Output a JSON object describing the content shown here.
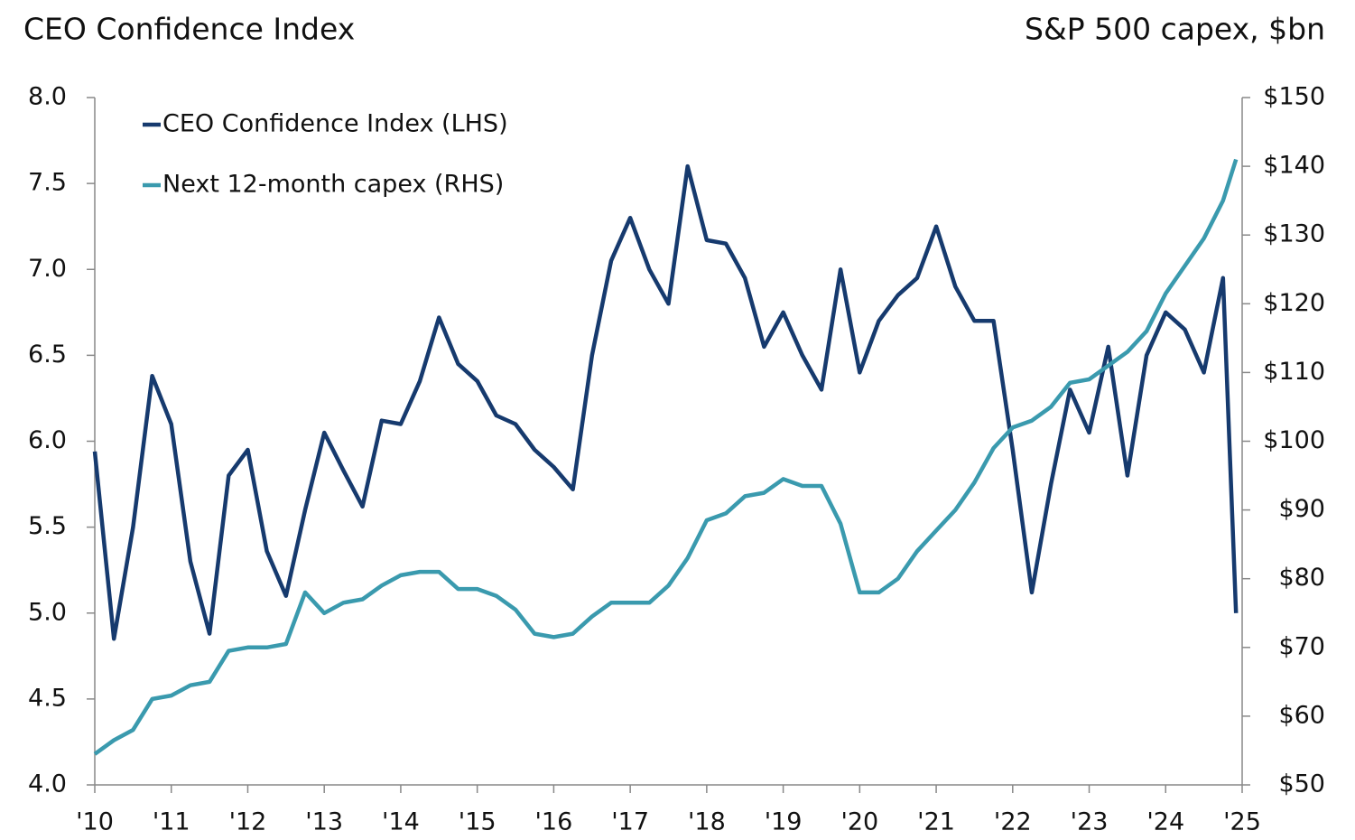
{
  "chart_data": {
    "type": "line",
    "title": "CEO Confidence Index",
    "y2_title": "S&P 500 capex, $bn",
    "legend": "top-left",
    "x": [
      2010,
      2010.25,
      2010.5,
      2010.75,
      2011,
      2011.25,
      2011.5,
      2011.75,
      2012,
      2012.25,
      2012.5,
      2012.75,
      2013,
      2013.25,
      2013.5,
      2013.75,
      2014,
      2014.25,
      2014.5,
      2014.75,
      2015,
      2015.25,
      2015.5,
      2015.75,
      2016,
      2016.25,
      2016.5,
      2016.75,
      2017,
      2017.25,
      2017.5,
      2017.75,
      2018,
      2018.25,
      2018.5,
      2018.75,
      2019,
      2019.25,
      2019.5,
      2019.75,
      2020,
      2020.25,
      2020.5,
      2020.75,
      2021,
      2021.25,
      2021.5,
      2021.75,
      2022,
      2022.25,
      2022.5,
      2022.75,
      2023,
      2023.25,
      2023.5,
      2023.75,
      2024,
      2024.25,
      2024.5,
      2024.75,
      2024.92
    ],
    "series": [
      {
        "name": "CEO Confidence Index (LHS)",
        "color": "#163a6e",
        "axis": "y",
        "values": [
          5.94,
          4.85,
          5.5,
          6.38,
          6.1,
          5.3,
          4.88,
          5.8,
          5.95,
          5.36,
          5.1,
          5.6,
          6.05,
          5.83,
          5.62,
          6.12,
          6.1,
          6.35,
          6.72,
          6.45,
          6.35,
          6.15,
          6.1,
          5.95,
          5.85,
          5.72,
          6.5,
          7.05,
          7.3,
          7.0,
          6.8,
          7.6,
          7.17,
          7.15,
          6.95,
          6.55,
          6.75,
          6.5,
          6.3,
          7.0,
          6.4,
          6.7,
          6.85,
          6.95,
          7.25,
          6.9,
          6.7,
          6.7,
          5.95,
          5.12,
          5.75,
          6.3,
          6.05,
          6.55,
          5.8,
          6.5,
          6.75,
          6.65,
          6.4,
          6.95,
          5.0
        ]
      },
      {
        "name": "Next 12-month capex (RHS)",
        "color": "#3a9aae",
        "axis": "y2",
        "values": [
          54.5,
          56.5,
          58,
          62.5,
          63,
          64.5,
          65,
          69.5,
          70,
          70,
          70.5,
          78,
          75,
          76.5,
          77,
          79,
          80.5,
          81,
          81,
          78.5,
          78.5,
          77.5,
          75.5,
          72,
          71.5,
          72,
          74.5,
          76.5,
          76.5,
          76.5,
          79,
          83,
          88.5,
          89.5,
          92,
          92.5,
          94.5,
          93.5,
          93.5,
          88,
          78,
          78,
          80,
          84,
          87,
          90,
          94,
          99,
          102,
          103,
          105,
          108.5,
          109,
          111,
          113,
          116,
          121.5,
          125.5,
          129.5,
          135,
          141
        ]
      }
    ],
    "xlim": [
      2010,
      2025
    ],
    "xticks": [
      {
        "value": 2010,
        "label": "'10"
      },
      {
        "value": 2011,
        "label": "'11"
      },
      {
        "value": 2012,
        "label": "'12"
      },
      {
        "value": 2013,
        "label": "'13"
      },
      {
        "value": 2014,
        "label": "'14"
      },
      {
        "value": 2015,
        "label": "'15"
      },
      {
        "value": 2016,
        "label": "'16"
      },
      {
        "value": 2017,
        "label": "'17"
      },
      {
        "value": 2018,
        "label": "'18"
      },
      {
        "value": 2019,
        "label": "'19"
      },
      {
        "value": 2020,
        "label": "'20"
      },
      {
        "value": 2021,
        "label": "'21"
      },
      {
        "value": 2022,
        "label": "'22"
      },
      {
        "value": 2023,
        "label": "'23"
      },
      {
        "value": 2024,
        "label": "'24"
      },
      {
        "value": 2025,
        "label": "'25"
      }
    ],
    "ylim": [
      4,
      8
    ],
    "yticks": [
      {
        "value": 4,
        "label": "4.0"
      },
      {
        "value": 4.5,
        "label": "4.5"
      },
      {
        "value": 5,
        "label": "5.0"
      },
      {
        "value": 5.5,
        "label": "5.5"
      },
      {
        "value": 6,
        "label": "6.0"
      },
      {
        "value": 6.5,
        "label": "6.5"
      },
      {
        "value": 7,
        "label": "7.0"
      },
      {
        "value": 7.5,
        "label": "7.5"
      },
      {
        "value": 8,
        "label": "8.0"
      }
    ],
    "y2lim": [
      50,
      150
    ],
    "y2ticks": [
      {
        "value": 50,
        "label": "$50"
      },
      {
        "value": 60,
        "label": "$60"
      },
      {
        "value": 70,
        "label": "$70"
      },
      {
        "value": 80,
        "label": "$80"
      },
      {
        "value": 90,
        "label": "$90"
      },
      {
        "value": 100,
        "label": "$100"
      },
      {
        "value": 110,
        "label": "$110"
      },
      {
        "value": 120,
        "label": "$120"
      },
      {
        "value": 130,
        "label": "$130"
      },
      {
        "value": 140,
        "label": "$140"
      },
      {
        "value": 150,
        "label": "$150"
      }
    ]
  }
}
